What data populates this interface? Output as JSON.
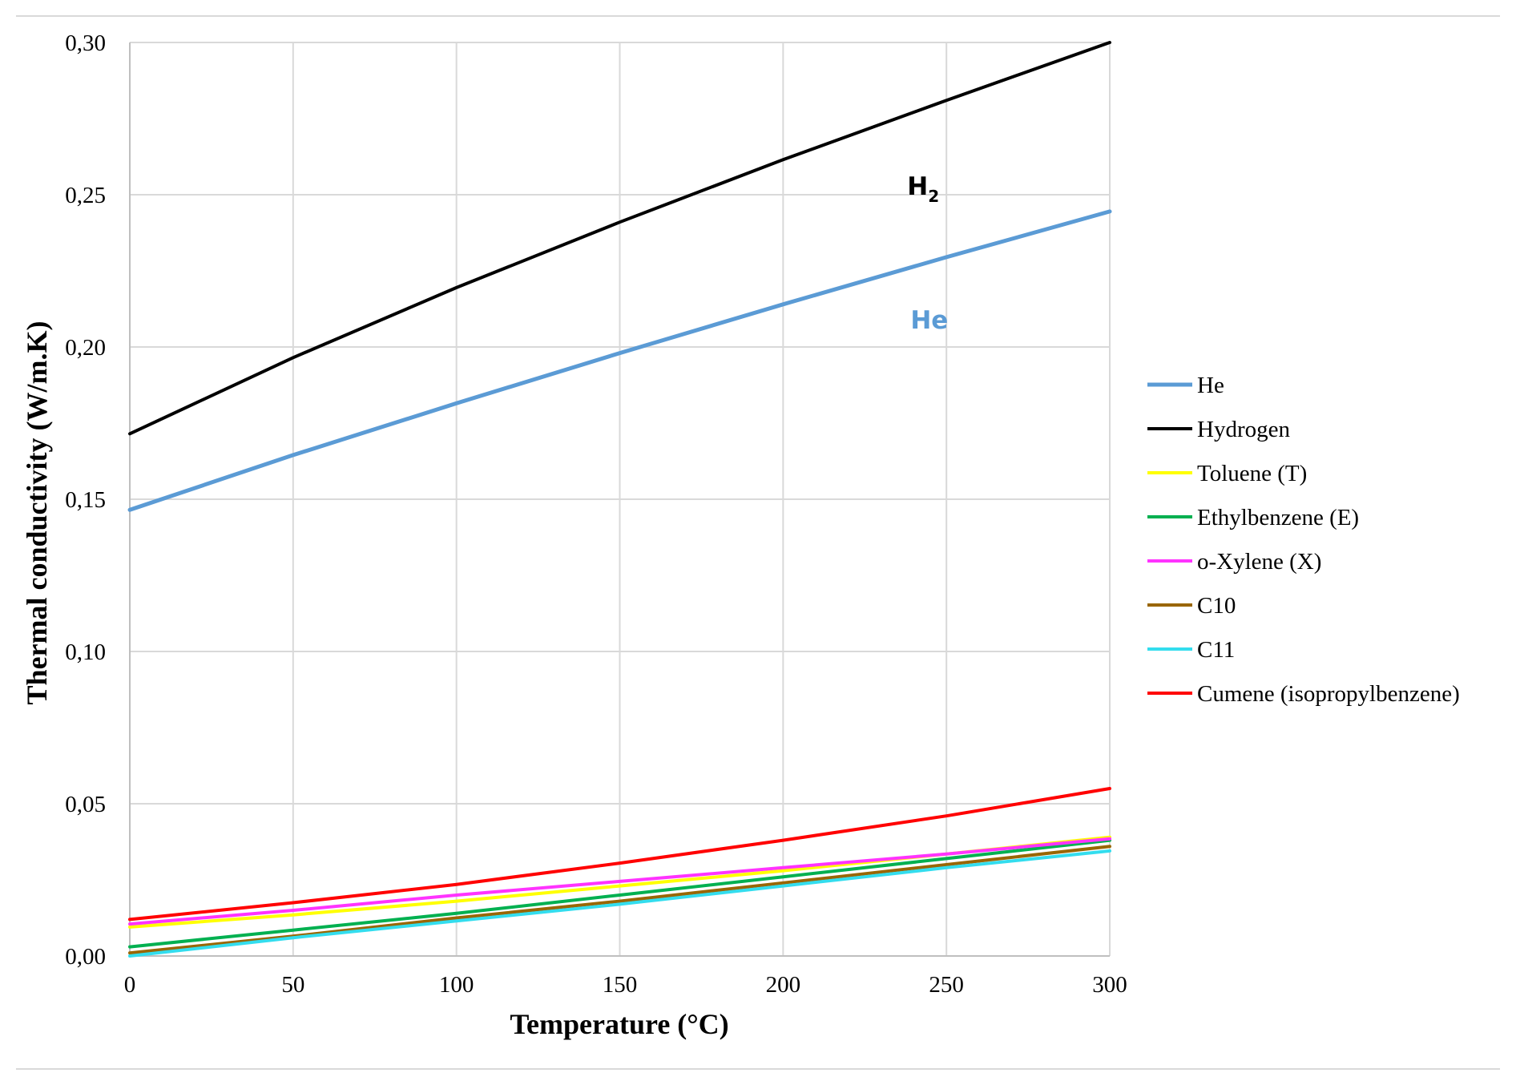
{
  "chart_data": {
    "type": "line",
    "title": "",
    "xlabel": "Temperature (°C)",
    "ylabel": "Thermal conductivity (W/m.K)",
    "xlim": [
      0,
      300
    ],
    "ylim": [
      0,
      0.3
    ],
    "x_ticks": [
      0,
      50,
      100,
      150,
      200,
      250,
      300
    ],
    "x_tick_labels": [
      "0",
      "50",
      "100",
      "150",
      "200",
      "250",
      "300"
    ],
    "y_ticks": [
      0,
      0.05,
      0.1,
      0.15,
      0.2,
      0.25,
      0.3
    ],
    "y_tick_labels": [
      "0,00",
      "0,05",
      "0,10",
      "0,15",
      "0,20",
      "0,25",
      "0,30"
    ],
    "grid": true,
    "legend_position": "right",
    "series": [
      {
        "name": "He",
        "color": "#5B9BD5",
        "x": [
          0,
          50,
          100,
          150,
          200,
          250,
          300
        ],
        "values": [
          0.1465,
          0.1645,
          0.1815,
          0.198,
          0.214,
          0.2295,
          0.2445
        ]
      },
      {
        "name": "Hydrogen",
        "color": "#000000",
        "x": [
          0,
          50,
          100,
          150,
          200,
          250,
          300
        ],
        "values": [
          0.1715,
          0.1965,
          0.2195,
          0.241,
          0.2615,
          0.281,
          0.3
        ]
      },
      {
        "name": "Toluene (T)",
        "color": "#FFFF00",
        "x": [
          0,
          50,
          100,
          150,
          200,
          250,
          300
        ],
        "values": [
          0.0095,
          0.0135,
          0.018,
          0.023,
          0.028,
          0.0335,
          0.039
        ]
      },
      {
        "name": "Ethylbenzene (E)",
        "color": "#00B050",
        "x": [
          0,
          50,
          100,
          150,
          200,
          250,
          300
        ],
        "values": [
          0.003,
          0.0085,
          0.014,
          0.02,
          0.026,
          0.032,
          0.038
        ]
      },
      {
        "name": "o-Xylene (X)",
        "color": "#FF33FF",
        "x": [
          0,
          50,
          100,
          150,
          200,
          250,
          300
        ],
        "values": [
          0.0105,
          0.015,
          0.02,
          0.0245,
          0.029,
          0.0335,
          0.0385
        ]
      },
      {
        "name": "C10",
        "color": "#996600",
        "x": [
          0,
          50,
          100,
          150,
          200,
          250,
          300
        ],
        "values": [
          0.001,
          0.0065,
          0.0125,
          0.018,
          0.024,
          0.03,
          0.036
        ]
      },
      {
        "name": "C11",
        "color": "#33DDEE",
        "x": [
          0,
          50,
          100,
          150,
          200,
          250,
          300
        ],
        "values": [
          0.0,
          0.006,
          0.0115,
          0.017,
          0.023,
          0.029,
          0.0345
        ]
      },
      {
        "name": "Cumene (isopropylbenzene)",
        "color": "#FF0000",
        "x": [
          0,
          50,
          100,
          150,
          200,
          250,
          300
        ],
        "values": [
          0.012,
          0.0175,
          0.0235,
          0.0305,
          0.038,
          0.046,
          0.055
        ]
      }
    ],
    "annotations": [
      {
        "text": "H",
        "subscript": "2",
        "x": 238,
        "y": 0.25,
        "color": "#000000"
      },
      {
        "text": "He",
        "x": 239,
        "y": 0.206,
        "color": "#5B9BD5"
      }
    ]
  }
}
